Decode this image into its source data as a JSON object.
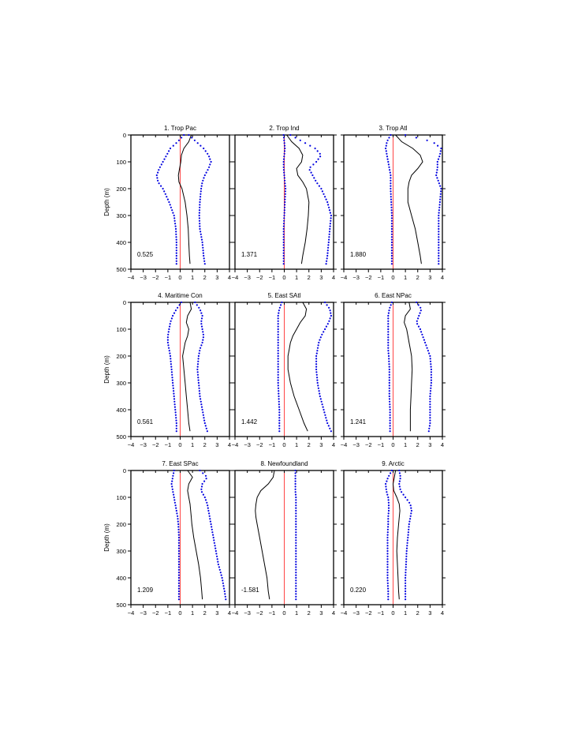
{
  "colors": {
    "mean": "#000000",
    "spread": "#0000e0",
    "zero": "#ff4444",
    "frame": "#000000"
  },
  "axes": {
    "ylabel": "Depth (m)"
  },
  "chart_data": [
    {
      "type": "line",
      "title": "1. Trop Pac",
      "value_label": "0.525",
      "xlim": [
        -4,
        4
      ],
      "ylim": [
        0,
        500
      ],
      "xticks": [
        "−4",
        "−3",
        "−2",
        "−1",
        "0",
        "1",
        "2",
        "3",
        "4"
      ],
      "yticks": [
        "0",
        "100",
        "200",
        "300",
        "400",
        "500"
      ],
      "depth": [
        0,
        25,
        50,
        75,
        100,
        125,
        150,
        175,
        200,
        250,
        300,
        350,
        400,
        450,
        480
      ],
      "series": [
        {
          "role": "mean",
          "values": [
            0.9,
            0.7,
            0.3,
            0.1,
            0.05,
            -0.05,
            -0.15,
            -0.1,
            0.15,
            0.4,
            0.55,
            0.65,
            0.7,
            0.75,
            0.8
          ]
        },
        {
          "role": "lower",
          "values": [
            0.3,
            -0.2,
            -0.8,
            -1.1,
            -1.4,
            -1.7,
            -1.9,
            -1.8,
            -1.4,
            -0.9,
            -0.5,
            -0.35,
            -0.3,
            -0.3,
            -0.3
          ]
        },
        {
          "role": "upper",
          "values": [
            0.7,
            1.3,
            1.9,
            2.3,
            2.5,
            2.3,
            2.0,
            1.8,
            1.7,
            1.6,
            1.55,
            1.6,
            1.8,
            1.9,
            2.0
          ]
        }
      ]
    },
    {
      "type": "line",
      "title": "2. Trop Ind",
      "value_label": "1.371",
      "xlim": [
        -4,
        4
      ],
      "ylim": [
        0,
        500
      ],
      "xticks": [
        "−4",
        "−3",
        "−2",
        "−1",
        "0",
        "1",
        "2",
        "3",
        "4"
      ],
      "yticks": [
        "0",
        "100",
        "200",
        "300",
        "400",
        "500"
      ],
      "depth": [
        0,
        25,
        50,
        75,
        100,
        125,
        150,
        175,
        200,
        250,
        300,
        350,
        400,
        450,
        480
      ],
      "series": [
        {
          "role": "mean",
          "values": [
            0.2,
            0.6,
            1.2,
            1.5,
            1.4,
            1.0,
            1.1,
            1.5,
            1.8,
            2.0,
            1.95,
            1.85,
            1.7,
            1.5,
            1.4
          ]
        },
        {
          "role": "lower",
          "values": [
            -0.05,
            0.0,
            0.05,
            0.0,
            -0.05,
            -0.05,
            0.0,
            0.05,
            0.1,
            0.05,
            0.0,
            -0.05,
            -0.05,
            -0.05,
            -0.05
          ]
        },
        {
          "role": "upper",
          "values": [
            0.5,
            1.5,
            2.5,
            3.0,
            2.6,
            2.0,
            2.3,
            2.6,
            3.0,
            3.5,
            3.8,
            3.7,
            3.6,
            3.5,
            3.4
          ]
        }
      ]
    },
    {
      "type": "line",
      "title": "3. Trop Atl",
      "value_label": "1.880",
      "xlim": [
        -4,
        4
      ],
      "ylim": [
        0,
        500
      ],
      "xticks": [
        "−4",
        "−3",
        "−2",
        "−1",
        "0",
        "1",
        "2",
        "3",
        "4"
      ],
      "yticks": [
        "0",
        "100",
        "200",
        "300",
        "400",
        "500"
      ],
      "depth": [
        0,
        25,
        50,
        75,
        100,
        125,
        150,
        175,
        200,
        250,
        300,
        350,
        400,
        450,
        480
      ],
      "series": [
        {
          "role": "mean",
          "values": [
            0.2,
            0.7,
            1.6,
            2.2,
            2.4,
            2.0,
            1.5,
            1.3,
            1.2,
            1.2,
            1.5,
            1.8,
            2.0,
            2.2,
            2.3
          ]
        },
        {
          "role": "lower",
          "values": [
            -0.2,
            -0.5,
            -0.6,
            -0.5,
            -0.4,
            -0.3,
            -0.2,
            -0.2,
            -0.2,
            -0.15,
            -0.1,
            -0.1,
            -0.1,
            -0.1,
            -0.1
          ]
        },
        {
          "role": "upper",
          "values": [
            1.0,
            3.2,
            3.9,
            3.8,
            3.6,
            3.6,
            3.5,
            3.7,
            3.9,
            3.8,
            3.7,
            3.7,
            3.7,
            3.7,
            3.7
          ]
        }
      ]
    },
    {
      "type": "line",
      "title": "4. Maritime Con",
      "value_label": "0.561",
      "xlim": [
        -4,
        4
      ],
      "ylim": [
        0,
        500
      ],
      "xticks": [
        "−4",
        "−3",
        "−2",
        "−1",
        "0",
        "1",
        "2",
        "3",
        "4"
      ],
      "yticks": [
        "0",
        "100",
        "200",
        "300",
        "400",
        "500"
      ],
      "depth": [
        0,
        25,
        50,
        75,
        100,
        125,
        150,
        175,
        200,
        250,
        300,
        350,
        400,
        450,
        480
      ],
      "series": [
        {
          "role": "mean",
          "values": [
            0.8,
            0.9,
            0.6,
            0.5,
            0.7,
            0.6,
            0.4,
            0.3,
            0.2,
            0.3,
            0.4,
            0.5,
            0.6,
            0.7,
            0.8
          ]
        },
        {
          "role": "lower",
          "values": [
            0.1,
            -0.3,
            -0.6,
            -0.8,
            -0.9,
            -1.0,
            -1.0,
            -0.9,
            -0.8,
            -0.7,
            -0.6,
            -0.5,
            -0.4,
            -0.3,
            -0.3
          ]
        },
        {
          "role": "upper",
          "values": [
            1.2,
            1.6,
            1.8,
            1.7,
            1.8,
            1.9,
            1.8,
            1.6,
            1.5,
            1.4,
            1.5,
            1.6,
            1.8,
            2.0,
            2.2
          ]
        }
      ]
    },
    {
      "type": "line",
      "title": "5. East SAtl",
      "value_label": "1.442",
      "xlim": [
        -4,
        4
      ],
      "ylim": [
        0,
        500
      ],
      "xticks": [
        "−4",
        "−3",
        "−2",
        "−1",
        "0",
        "1",
        "2",
        "3",
        "4"
      ],
      "yticks": [
        "0",
        "100",
        "200",
        "300",
        "400",
        "500"
      ],
      "depth": [
        0,
        25,
        50,
        75,
        100,
        125,
        150,
        175,
        200,
        250,
        300,
        350,
        400,
        450,
        480
      ],
      "series": [
        {
          "role": "mean",
          "values": [
            1.5,
            1.8,
            1.7,
            1.3,
            1.0,
            0.7,
            0.5,
            0.4,
            0.3,
            0.3,
            0.5,
            0.8,
            1.2,
            1.6,
            1.9
          ]
        },
        {
          "role": "lower",
          "values": [
            -0.2,
            -0.4,
            -0.5,
            -0.5,
            -0.5,
            -0.5,
            -0.5,
            -0.5,
            -0.5,
            -0.5,
            -0.5,
            -0.45,
            -0.4,
            -0.4,
            -0.4
          ]
        },
        {
          "role": "upper",
          "values": [
            3.3,
            3.7,
            3.8,
            3.6,
            3.3,
            3.0,
            2.8,
            2.7,
            2.6,
            2.6,
            2.7,
            2.9,
            3.2,
            3.5,
            3.8
          ]
        }
      ]
    },
    {
      "type": "line",
      "title": "6. East NPac",
      "value_label": "1.241",
      "xlim": [
        -4,
        4
      ],
      "ylim": [
        0,
        500
      ],
      "xticks": [
        "−4",
        "−3",
        "−2",
        "−1",
        "0",
        "1",
        "2",
        "3",
        "4"
      ],
      "yticks": [
        "0",
        "100",
        "200",
        "300",
        "400",
        "500"
      ],
      "depth": [
        0,
        25,
        50,
        75,
        100,
        125,
        150,
        175,
        200,
        250,
        300,
        350,
        400,
        450,
        480
      ],
      "series": [
        {
          "role": "mean",
          "values": [
            1.3,
            1.4,
            1.0,
            0.9,
            1.1,
            1.2,
            1.3,
            1.4,
            1.5,
            1.55,
            1.5,
            1.45,
            1.4,
            1.4,
            1.4
          ]
        },
        {
          "role": "lower",
          "values": [
            -0.1,
            -0.3,
            -0.4,
            -0.4,
            -0.4,
            -0.4,
            -0.4,
            -0.4,
            -0.35,
            -0.3,
            -0.3,
            -0.3,
            -0.25,
            -0.25,
            -0.25
          ]
        },
        {
          "role": "upper",
          "values": [
            1.9,
            2.3,
            2.1,
            1.9,
            2.2,
            2.4,
            2.6,
            2.8,
            3.0,
            3.1,
            3.1,
            3.0,
            3.0,
            3.0,
            2.9
          ]
        }
      ]
    },
    {
      "type": "line",
      "title": "7. East SPac",
      "value_label": "1.209",
      "xlim": [
        -4,
        4
      ],
      "ylim": [
        0,
        500
      ],
      "xticks": [
        "−4",
        "−3",
        "−2",
        "−1",
        "0",
        "1",
        "2",
        "3",
        "4"
      ],
      "yticks": [
        "0",
        "100",
        "200",
        "300",
        "400",
        "500"
      ],
      "depth": [
        0,
        25,
        50,
        75,
        100,
        125,
        150,
        175,
        200,
        250,
        300,
        350,
        400,
        450,
        480
      ],
      "series": [
        {
          "role": "mean",
          "values": [
            0.6,
            1.0,
            0.7,
            0.6,
            0.7,
            0.8,
            0.85,
            0.9,
            0.95,
            1.1,
            1.3,
            1.5,
            1.65,
            1.75,
            1.8
          ]
        },
        {
          "role": "lower",
          "values": [
            -0.5,
            -0.6,
            -0.7,
            -0.6,
            -0.5,
            -0.4,
            -0.3,
            -0.2,
            -0.15,
            -0.1,
            -0.1,
            -0.1,
            -0.1,
            -0.1,
            -0.1
          ]
        },
        {
          "role": "upper",
          "values": [
            1.6,
            2.2,
            1.8,
            1.7,
            2.0,
            2.2,
            2.3,
            2.4,
            2.5,
            2.7,
            2.9,
            3.1,
            3.4,
            3.6,
            3.7
          ]
        }
      ]
    },
    {
      "type": "line",
      "title": "8. Newfoundland",
      "value_label": "-1.581",
      "xlim": [
        -4,
        4
      ],
      "ylim": [
        0,
        500
      ],
      "xticks": [
        "−4",
        "−3",
        "−2",
        "−1",
        "0",
        "1",
        "2",
        "3",
        "4"
      ],
      "yticks": [
        "0",
        "100",
        "200",
        "300",
        "400",
        "500"
      ],
      "depth": [
        0,
        25,
        50,
        75,
        100,
        125,
        150,
        175,
        200,
        250,
        300,
        350,
        400,
        450,
        480
      ],
      "series": [
        {
          "role": "mean",
          "values": [
            -0.8,
            -0.9,
            -1.3,
            -1.9,
            -2.2,
            -2.3,
            -2.35,
            -2.3,
            -2.2,
            -2.0,
            -1.8,
            -1.6,
            -1.4,
            -1.3,
            -1.2
          ]
        },
        {
          "role": "upper",
          "values": [
            0.9,
            0.9,
            0.9,
            0.9,
            0.95,
            0.95,
            0.95,
            0.95,
            0.95,
            0.95,
            0.95,
            0.95,
            0.95,
            0.95,
            0.95
          ]
        }
      ]
    },
    {
      "type": "line",
      "title": "9. Arctic",
      "value_label": "0.220",
      "xlim": [
        -4,
        4
      ],
      "ylim": [
        0,
        500
      ],
      "xticks": [
        "−4",
        "−3",
        "−2",
        "−1",
        "0",
        "1",
        "2",
        "3",
        "4"
      ],
      "yticks": [
        "0",
        "100",
        "200",
        "300",
        "400",
        "500"
      ],
      "depth": [
        0,
        25,
        50,
        75,
        100,
        125,
        150,
        175,
        200,
        250,
        300,
        350,
        400,
        450,
        480
      ],
      "series": [
        {
          "role": "mean",
          "values": [
            0.2,
            0.1,
            0.0,
            0.05,
            0.3,
            0.5,
            0.55,
            0.5,
            0.45,
            0.35,
            0.3,
            0.35,
            0.4,
            0.45,
            0.5
          ]
        },
        {
          "role": "lower",
          "values": [
            -0.1,
            -0.4,
            -0.6,
            -0.55,
            -0.4,
            -0.35,
            -0.35,
            -0.4,
            -0.4,
            -0.45,
            -0.45,
            -0.45,
            -0.45,
            -0.4,
            -0.4
          ]
        },
        {
          "role": "upper",
          "values": [
            0.5,
            0.6,
            0.5,
            0.6,
            1.0,
            1.4,
            1.5,
            1.4,
            1.3,
            1.2,
            1.1,
            1.05,
            1.0,
            1.0,
            1.0
          ]
        }
      ]
    }
  ]
}
